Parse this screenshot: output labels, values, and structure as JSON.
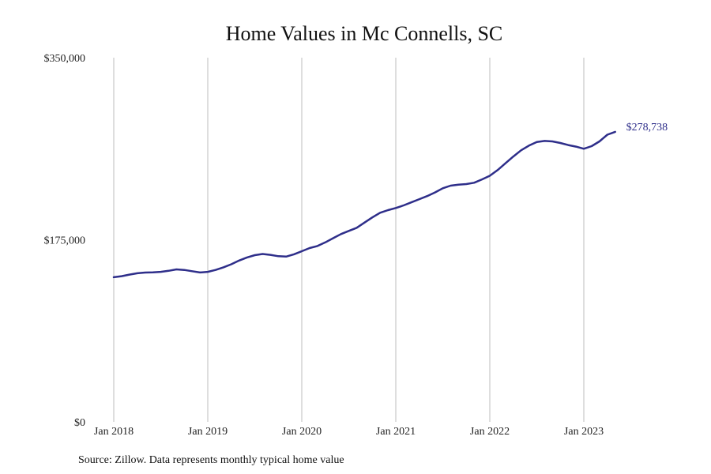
{
  "chart_data": {
    "type": "line",
    "title": "Home Values in Mc Connells, SC",
    "xlabel": "",
    "ylabel": "",
    "source": "Source: Zillow. Data represents monthly typical home value",
    "ylim": [
      0,
      350000
    ],
    "y_ticks": [
      {
        "value": 0,
        "label": "$0"
      },
      {
        "value": 175000,
        "label": "$175,000"
      },
      {
        "value": 350000,
        "label": "$350,000"
      }
    ],
    "x_ticks": [
      {
        "value": 2018.0,
        "label": "Jan 2018"
      },
      {
        "value": 2019.0,
        "label": "Jan 2019"
      },
      {
        "value": 2020.0,
        "label": "Jan 2020"
      },
      {
        "value": 2021.0,
        "label": "Jan 2021"
      },
      {
        "value": 2022.0,
        "label": "Jan 2022"
      },
      {
        "value": 2023.0,
        "label": "Jan 2023"
      }
    ],
    "grid": "vertical",
    "line_color": "#2e2e8a",
    "end_label": "$278,738",
    "series": [
      {
        "x": [
          "2018-01",
          "2018-02",
          "2018-03",
          "2018-04",
          "2018-05",
          "2018-06",
          "2018-07",
          "2018-08",
          "2018-09",
          "2018-10",
          "2018-11",
          "2018-12",
          "2019-01",
          "2019-02",
          "2019-03",
          "2019-04",
          "2019-05",
          "2019-06",
          "2019-07",
          "2019-08",
          "2019-09",
          "2019-10",
          "2019-11",
          "2019-12",
          "2020-01",
          "2020-02",
          "2020-03",
          "2020-04",
          "2020-05",
          "2020-06",
          "2020-07",
          "2020-08",
          "2020-09",
          "2020-10",
          "2020-11",
          "2020-12",
          "2021-01",
          "2021-02",
          "2021-03",
          "2021-04",
          "2021-05",
          "2021-06",
          "2021-07",
          "2021-08",
          "2021-09",
          "2021-10",
          "2021-11",
          "2021-12",
          "2022-01",
          "2022-02",
          "2022-03",
          "2022-04",
          "2022-05",
          "2022-06",
          "2022-07",
          "2022-08",
          "2022-09",
          "2022-10",
          "2022-11",
          "2022-12",
          "2023-01",
          "2023-02",
          "2023-03",
          "2023-04",
          "2023-05"
        ],
        "values": [
          139000,
          140000,
          141500,
          142800,
          143500,
          143700,
          144200,
          145200,
          146500,
          146000,
          144800,
          143600,
          144200,
          146000,
          148500,
          151500,
          155000,
          158000,
          160200,
          161300,
          160500,
          159200,
          158800,
          161000,
          164000,
          167000,
          169000,
          172500,
          176500,
          180500,
          183500,
          186500,
          191500,
          196500,
          201000,
          203500,
          205500,
          208000,
          211000,
          214000,
          217000,
          220500,
          224500,
          227000,
          228000,
          228500,
          229800,
          233000,
          236500,
          242000,
          248500,
          255000,
          261000,
          265500,
          269000,
          270000,
          269500,
          268000,
          266000,
          264500,
          262500,
          265000,
          269500,
          276000,
          278738
        ]
      }
    ]
  }
}
